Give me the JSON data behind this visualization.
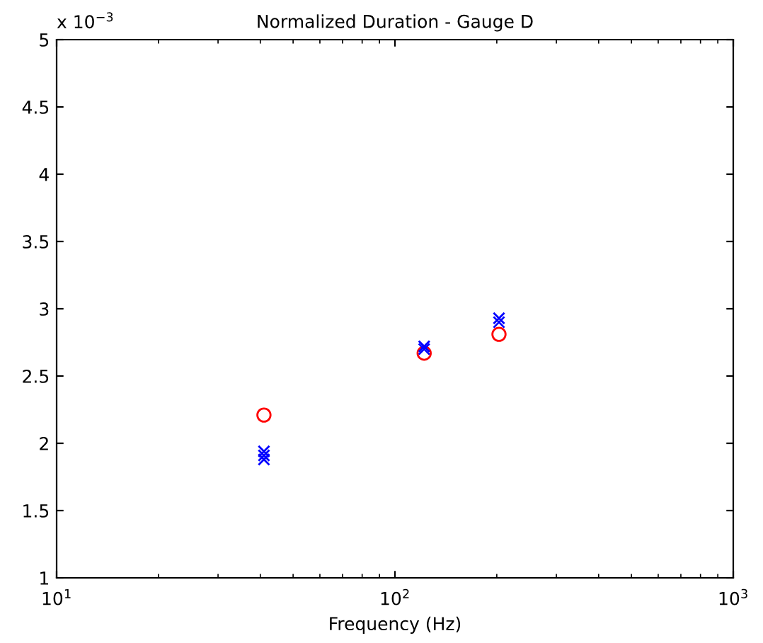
{
  "chart_data": {
    "type": "scatter",
    "title": "Normalized Duration - Gauge D",
    "xlabel": "Frequency (Hz)",
    "annotations": [
      "x 10$^{−3}$"
    ],
    "log": "x",
    "grid": false,
    "legend": false,
    "xlim": [
      10,
      1000
    ],
    "xticks": [
      {
        "value": 10,
        "label": "10$^{1}$"
      },
      {
        "value": 100,
        "label": "10$^{2}$"
      },
      {
        "value": 1000,
        "label": "10$^{3}$"
      }
    ],
    "ylim": [
      1,
      5
    ],
    "yticks": [
      1,
      1.5,
      2,
      2.5,
      3,
      3.5,
      4,
      4.5,
      5
    ],
    "series": [
      {
        "color": "#ff0000",
        "marker": "circle",
        "x": [
          41,
          122,
          203
        ],
        "values": [
          2.21,
          2.67,
          2.81
        ]
      },
      {
        "color": "#0000ff",
        "marker": "cross",
        "x": [
          41,
          41,
          41,
          122,
          122,
          203,
          203
        ],
        "values": [
          1.94,
          1.91,
          1.88,
          2.72,
          2.7,
          2.93,
          2.9
        ]
      }
    ]
  }
}
